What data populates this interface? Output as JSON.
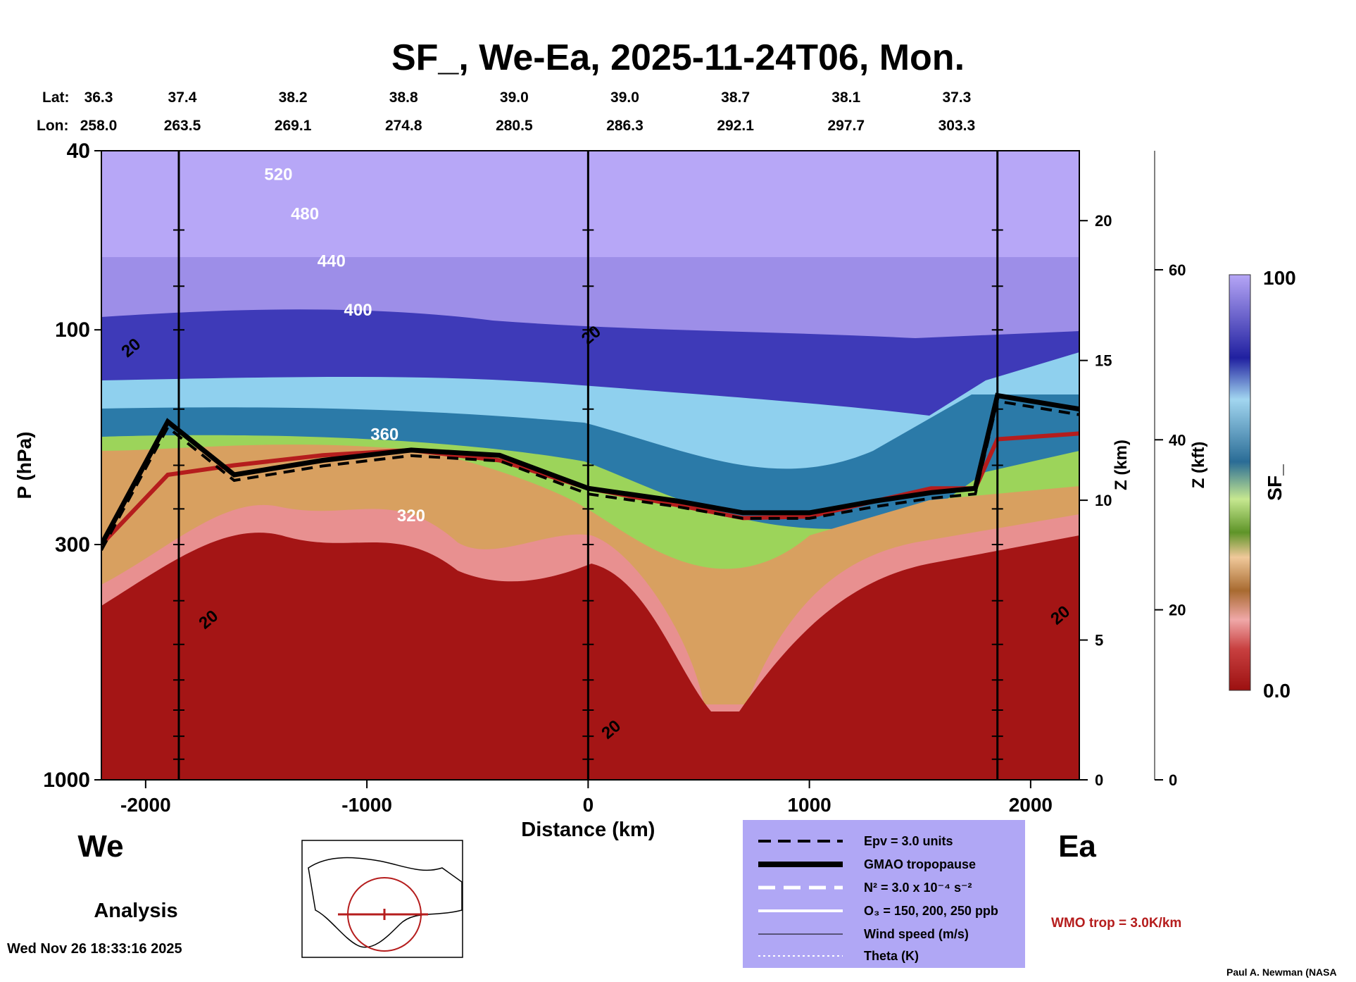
{
  "page": {
    "title": "SF_, We-Ea, 2025-11-24T06, Mon.",
    "lat_label": "Lat:",
    "lon_label": "Lon:",
    "west_label": "We",
    "east_label": "Ea",
    "analysis_label": "Analysis",
    "timestamp": "Wed Nov 26 18:33:16 2025",
    "credit": "Paul A. Newman (NASA",
    "wmo_note": "WMO trop = 3.0K/km"
  },
  "legend": {
    "items": [
      {
        "label": "Epv = 3.0 units",
        "style": "dashed-black"
      },
      {
        "label": "GMAO tropopause",
        "style": "thick-black"
      },
      {
        "label": "N² = 3.0 x 10⁻⁴ s⁻²",
        "style": "dashed-white"
      },
      {
        "label": "O₃ = 150, 200, 250 ppb",
        "style": "solid-white"
      },
      {
        "label": "Wind speed (m/s)",
        "style": "thin-black"
      },
      {
        "label": "Theta (K)",
        "style": "dotted-white"
      }
    ]
  },
  "chart_data": {
    "type": "heatmap",
    "title": "SF_, We-Ea, 2025-11-24T06, Mon.",
    "xlabel": "Distance (km)",
    "ylabel": "P (hPa)",
    "right_axis_1_label": "Z (km)",
    "right_axis_2_label": "Z (kft)",
    "xlim": [
      -2200,
      2220
    ],
    "ylim": [
      1000,
      40
    ],
    "y_scale": "log",
    "x_ticks": [
      -2000,
      -1000,
      0,
      1000,
      2000
    ],
    "y_ticks": [
      40,
      100,
      300,
      1000
    ],
    "z_km_ticks": [
      0,
      5,
      10,
      15,
      20
    ],
    "z_kft_ticks": [
      0,
      20,
      40,
      60
    ],
    "latitudes": [
      36.3,
      37.4,
      38.2,
      38.8,
      39.0,
      39.0,
      38.7,
      38.1,
      37.3
    ],
    "longitudes": [
      258.0,
      263.5,
      269.1,
      274.8,
      280.5,
      286.3,
      292.1,
      297.7,
      303.3
    ],
    "station_distances_km": [
      -2200,
      -1850,
      -1350,
      -850,
      -350,
      150,
      650,
      1150,
      1650
    ],
    "vertical_marker_lines_km": [
      -1850,
      0,
      1850
    ],
    "colorbar": {
      "label": "SF_",
      "min": "0.0",
      "max": "100"
    },
    "theta_contours_K": [
      {
        "label": "520",
        "value": 520
      },
      {
        "label": "480",
        "value": 480
      },
      {
        "label": "440",
        "value": 440
      },
      {
        "label": "400",
        "value": 400
      },
      {
        "label": "360",
        "value": 360
      },
      {
        "label": "320",
        "value": 320
      }
    ],
    "wind_speed_labels": [
      "20",
      "20",
      "20",
      "20",
      "20"
    ],
    "tropopause_pressure_hPa": {
      "distance_km": [
        -2200,
        -1900,
        -1600,
        -1200,
        -800,
        -400,
        0,
        400,
        700,
        1000,
        1300,
        1550,
        1750,
        1850,
        2220
      ],
      "gmao": [
        300,
        160,
        210,
        195,
        185,
        190,
        225,
        240,
        255,
        255,
        240,
        230,
        225,
        140,
        150
      ],
      "wmo": [
        300,
        210,
        200,
        190,
        185,
        195,
        225,
        245,
        262,
        260,
        240,
        225,
        225,
        175,
        170
      ]
    }
  }
}
